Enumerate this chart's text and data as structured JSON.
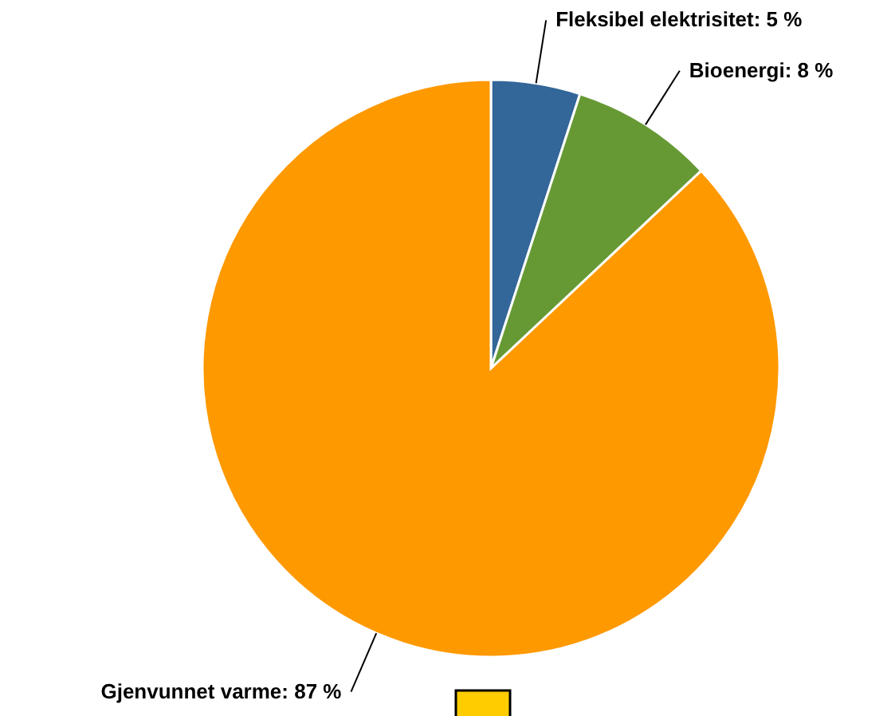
{
  "chart_data": {
    "type": "pie",
    "categories": [
      "Fleksibel elektrisitet",
      "Bioenergi",
      "Gjenvunnet varme"
    ],
    "values": [
      5,
      8,
      87
    ],
    "colors": [
      "#336699",
      "#669933",
      "#ff9900"
    ],
    "value_labels": [
      "5 %",
      "8 %",
      "87 %"
    ]
  }
}
